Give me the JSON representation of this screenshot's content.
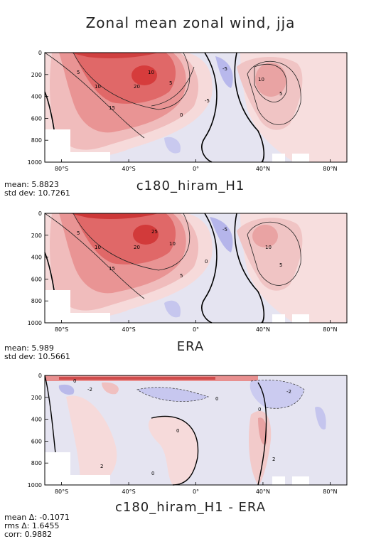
{
  "figure": {
    "title": "Zonal mean zonal wind, jja"
  },
  "chart_data": [
    {
      "type": "heatmap",
      "title": "c180_hiram_H1",
      "x_ticks": [
        "80°S",
        "40°S",
        "0°",
        "40°N",
        "80°N"
      ],
      "y_ticks": [
        "0",
        "200",
        "400",
        "600",
        "800",
        "1000"
      ],
      "xlim": [
        -90,
        90
      ],
      "ylim": [
        1000,
        0
      ],
      "contour_labels": [
        "5",
        "10",
        "15",
        "20",
        "10",
        "5",
        "0",
        "-5",
        "10",
        "5",
        "-5"
      ],
      "stats": {
        "mean": "mean: 5.8823",
        "std": "std dev: 10.7261"
      },
      "cells": [
        {
          "x": -60,
          "y": 50,
          "v": 25
        },
        {
          "x": -30,
          "y": 200,
          "v": 30
        },
        {
          "x": 38,
          "y": 250,
          "v": 15
        },
        {
          "x": 5,
          "y": 150,
          "v": -5
        }
      ]
    },
    {
      "type": "heatmap",
      "title": "ERA",
      "x_ticks": [
        "80°S",
        "40°S",
        "0°",
        "40°N",
        "80°N"
      ],
      "y_ticks": [
        "0",
        "200",
        "400",
        "600",
        "800",
        "1000"
      ],
      "xlim": [
        -90,
        90
      ],
      "ylim": [
        1000,
        0
      ],
      "contour_labels": [
        "5",
        "10",
        "15",
        "20",
        "25",
        "10",
        "5",
        "0",
        "-5",
        "10",
        "5"
      ],
      "stats": {
        "mean": "mean: 5.989",
        "std": "std dev: 10.5661"
      },
      "cells": [
        {
          "x": -60,
          "y": 50,
          "v": 25
        },
        {
          "x": -30,
          "y": 200,
          "v": 30
        },
        {
          "x": 40,
          "y": 220,
          "v": 15
        },
        {
          "x": 5,
          "y": 150,
          "v": -5
        }
      ]
    },
    {
      "type": "heatmap",
      "title": "c180_hiram_H1 - ERA",
      "x_ticks": [
        "80°S",
        "40°S",
        "0°",
        "40°N",
        "80°N"
      ],
      "y_ticks": [
        "0",
        "200",
        "400",
        "600",
        "800",
        "1000"
      ],
      "xlim": [
        -90,
        90
      ],
      "ylim": [
        1000,
        0
      ],
      "contour_labels": [
        "-2",
        "0",
        "2",
        "0",
        "0",
        "2",
        "-2",
        "0",
        "0"
      ],
      "stats": {
        "mean": "mean Δ: -0.1071",
        "rms": "rms Δ: 1.6455",
        "corr": "corr: 0.9882"
      },
      "cells": [
        {
          "x": -30,
          "y": 20,
          "v": 4
        },
        {
          "x": 30,
          "y": 250,
          "v": 2
        },
        {
          "x": -50,
          "y": 100,
          "v": -2
        }
      ]
    }
  ],
  "colors": {
    "positive": "#d73027",
    "negative": "#6b6bd8",
    "neutral": "#e4e4f2",
    "landmask": "#ffffff"
  }
}
